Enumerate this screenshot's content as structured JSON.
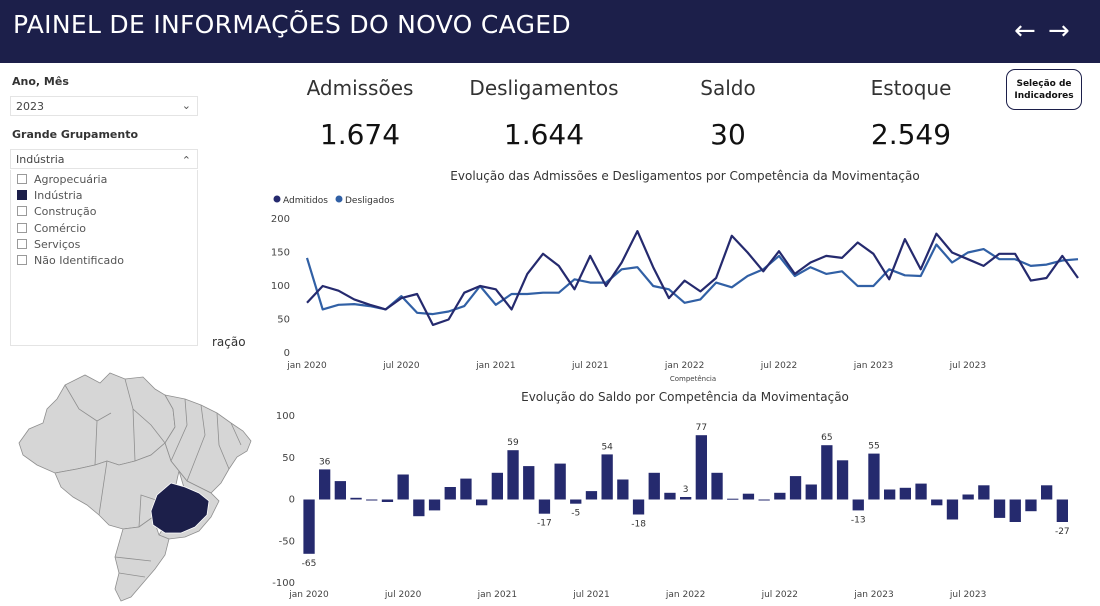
{
  "header": {
    "title": "PAINEL DE INFORMAÇÕES DO NOVO CAGED",
    "back_icon": "←",
    "forward_icon": "→"
  },
  "filters": {
    "year_label": "Ano, Mês",
    "year_value": "2023",
    "group_label": "Grande Grupamento",
    "group_value": "Indústria",
    "options": [
      {
        "label": "Agropecuária",
        "checked": false
      },
      {
        "label": "Indústria",
        "checked": true
      },
      {
        "label": "Construção",
        "checked": false
      },
      {
        "label": "Comércio",
        "checked": false
      },
      {
        "label": "Serviços",
        "checked": false
      },
      {
        "label": "Não Identificado",
        "checked": false
      }
    ]
  },
  "kpis": {
    "admissoes": {
      "label": "Admissões",
      "value": "1.674"
    },
    "desligamentos": {
      "label": "Desligamentos",
      "value": "1.644"
    },
    "saldo": {
      "label": "Saldo",
      "value": "30"
    },
    "estoque": {
      "label": "Estoque",
      "value": "2.549"
    }
  },
  "indicator_button": {
    "line1": "Seleção de",
    "line2": "Indicadores"
  },
  "map": {
    "title_fragment": "ração",
    "highlight": "#1c1f4a",
    "base": "#d6d6d6"
  },
  "colors": {
    "navy": "#1c1f4a",
    "series1": "#252a6e",
    "series2": "#3160a5",
    "bar": "#252a6e"
  },
  "chart_data": [
    {
      "type": "line",
      "title": "Evolução das Admissões e Desligamentos por Competência da Movimentação",
      "xlabel": "Competência",
      "ylabel": "",
      "ylim": [
        0,
        200
      ],
      "yticks": [
        0,
        50,
        100,
        150,
        200
      ],
      "xtick_labels": [
        "jan 2020",
        "jul 2020",
        "jan 2021",
        "jul 2021",
        "jan 2022",
        "jul 2022",
        "jan 2023",
        "jul 2023"
      ],
      "xtick_index": [
        0,
        6,
        12,
        18,
        24,
        30,
        36,
        42
      ],
      "legend_position": "top-left",
      "series": [
        {
          "name": "Admitidos",
          "values": [
            75,
            100,
            93,
            80,
            72,
            65,
            82,
            88,
            42,
            50,
            90,
            100,
            95,
            65,
            118,
            148,
            130,
            95,
            145,
            100,
            135,
            182,
            128,
            82,
            108,
            92,
            112,
            175,
            150,
            122,
            152,
            118,
            135,
            145,
            142,
            165,
            148,
            110,
            170,
            125,
            178,
            150,
            140,
            130,
            148,
            148,
            108,
            112,
            145,
            112
          ]
        },
        {
          "name": "Desligados",
          "values": [
            142,
            65,
            72,
            73,
            70,
            65,
            85,
            60,
            58,
            62,
            70,
            100,
            72,
            88,
            88,
            90,
            90,
            110,
            105,
            105,
            125,
            128,
            100,
            95,
            75,
            80,
            105,
            98,
            115,
            125,
            145,
            115,
            128,
            118,
            122,
            100,
            100,
            125,
            116,
            115,
            162,
            135,
            150,
            155,
            140,
            140,
            130,
            132,
            138,
            140
          ]
        }
      ]
    },
    {
      "type": "bar",
      "title": "Evolução do Saldo por Competência da Movimentação",
      "xlabel": "Competência",
      "ylim": [
        -100,
        100
      ],
      "yticks": [
        -100,
        -50,
        0,
        50,
        100
      ],
      "xtick_labels": [
        "jan 2020",
        "jul 2020",
        "jan 2021",
        "jul 2021",
        "jan 2022",
        "jul 2022",
        "jan 2023",
        "jul 2023"
      ],
      "xtick_index": [
        0,
        6,
        12,
        18,
        24,
        30,
        36,
        42
      ],
      "values": [
        -65,
        36,
        22,
        2,
        -1,
        -3,
        30,
        -20,
        -13,
        15,
        25,
        -7,
        32,
        59,
        40,
        -17,
        43,
        -5,
        10,
        54,
        24,
        -18,
        32,
        8,
        3,
        77,
        32,
        1,
        7,
        -1,
        8,
        28,
        18,
        65,
        47,
        -13,
        55,
        12,
        14,
        19,
        -7,
        -24,
        6,
        17,
        -22,
        -27,
        -14,
        17,
        -27
      ],
      "labeled_values": [
        -65,
        36,
        59,
        -17,
        -5,
        54,
        -18,
        77,
        3,
        65,
        -13,
        55,
        -27
      ],
      "labeled_index": [
        0,
        1,
        13,
        15,
        17,
        19,
        21,
        25,
        24,
        33,
        35,
        36,
        48
      ]
    }
  ]
}
